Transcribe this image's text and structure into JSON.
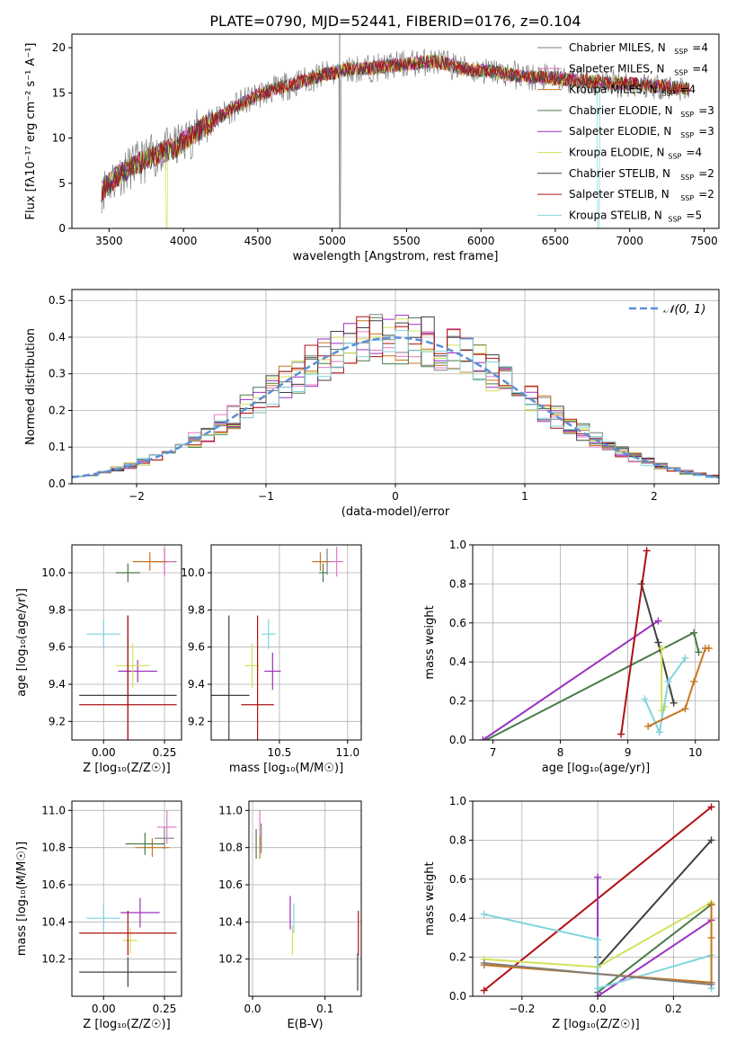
{
  "figure_title": "PLATE=0790, MJD=52441, FIBERID=0176, z=0.104",
  "series": [
    {
      "name": "Chabrier MILES",
      "nssp": "4",
      "color": "#7f7f7f"
    },
    {
      "name": "Salpeter MILES",
      "nssp": "4",
      "color": "#e377c2"
    },
    {
      "name": "Kroupa MILES",
      "nssp": "4",
      "color": "#c8761e"
    },
    {
      "name": "Chabrier ELODIE",
      "nssp": "3",
      "color": "#4a7a4a"
    },
    {
      "name": "Salpeter ELODIE",
      "nssp": "3",
      "color": "#9b30c0"
    },
    {
      "name": "Kroupa ELODIE",
      "nssp": "4",
      "color": "#d4e157"
    },
    {
      "name": "Chabrier STELIB",
      "nssp": "2",
      "color": "#404040"
    },
    {
      "name": "Salpeter STELIB",
      "nssp": "2",
      "color": "#b01010"
    },
    {
      "name": "Kroupa STELIB",
      "nssp": "5",
      "color": "#7fd4dc"
    }
  ],
  "chart_data": [
    {
      "id": "spectrum",
      "type": "line",
      "title": "PLATE=0790, MJD=52441, FIBERID=0176, z=0.104",
      "xlabel": "wavelength [Angstrom, rest frame]",
      "ylabel": "Flux [fλ10⁻¹⁷ erg cm⁻² s⁻¹ A⁻¹]",
      "xlim": [
        3250,
        7600
      ],
      "ylim": [
        0,
        21.5
      ],
      "xticks": [
        3500,
        4000,
        4500,
        5000,
        5500,
        6000,
        6500,
        7000,
        7500
      ],
      "yticks": [
        0,
        5,
        10,
        15,
        20
      ],
      "legend": "top-right",
      "continuum": {
        "x": [
          3450,
          3550,
          3650,
          3800,
          3950,
          4100,
          4300,
          4500,
          4700,
          4900,
          5100,
          5300,
          5500,
          5700,
          5900,
          6100,
          6300,
          6500,
          6700,
          6900,
          7100,
          7300,
          7400
        ],
        "y": [
          4.2,
          5.8,
          6.8,
          8.0,
          9.0,
          10.8,
          13.0,
          14.8,
          15.8,
          16.8,
          17.6,
          17.8,
          18.2,
          18.5,
          17.6,
          17.3,
          16.8,
          16.6,
          16.3,
          16.1,
          15.9,
          15.6,
          15.5
        ]
      }
    },
    {
      "id": "residuals",
      "type": "line",
      "xlabel": "(data-model)/error",
      "ylabel": "Normed distribution",
      "xlim": [
        -2.5,
        2.5
      ],
      "ylim": [
        0,
        0.53
      ],
      "xticks": [
        -2,
        -1,
        0,
        1,
        2
      ],
      "yticks": [
        0.0,
        0.1,
        0.2,
        0.3,
        0.4,
        0.5
      ],
      "grid": true,
      "legend": "top-right",
      "normal_label": "𝒩(0, 1)",
      "normal_color": "#5b8fd6"
    },
    {
      "id": "age_vs_Z",
      "type": "scatter",
      "xlabel": "Z [log₁₀(Z/Z☉)]",
      "ylabel": "age  [log₁₀(age/yr)]",
      "xlim": [
        -0.13,
        0.32
      ],
      "ylim": [
        9.1,
        10.15
      ],
      "xticks": [
        0.0,
        0.25
      ],
      "yticks": [
        9.2,
        9.4,
        9.6,
        9.8,
        10.0
      ],
      "grid": true,
      "points": [
        {
          "s": 0,
          "x": 0.25,
          "y": 10.06,
          "xerr": 0.05,
          "yerr": 0.07
        },
        {
          "s": 1,
          "x": 0.25,
          "y": 10.06,
          "xerr": 0.04,
          "yerr": 0.08
        },
        {
          "s": 2,
          "x": 0.19,
          "y": 10.06,
          "xerr": 0.07,
          "yerr": 0.05
        },
        {
          "s": 3,
          "x": 0.1,
          "y": 10.0,
          "xerr": 0.05,
          "yerr": 0.05
        },
        {
          "s": 4,
          "x": 0.14,
          "y": 9.47,
          "xerr": 0.08,
          "yerr": 0.06
        },
        {
          "s": 5,
          "x": 0.12,
          "y": 9.5,
          "xerr": 0.07,
          "yerr": 0.12
        },
        {
          "s": 6,
          "x": 0.1,
          "y": 9.34,
          "xerr": 0.2,
          "yerr": 0.43
        },
        {
          "s": 7,
          "x": 0.1,
          "y": 9.29,
          "xerr": 0.2,
          "yerr": 0.48
        },
        {
          "s": 8,
          "x": 0.0,
          "y": 9.67,
          "xerr": 0.07,
          "yerr": 0.08
        }
      ]
    },
    {
      "id": "age_vs_mass",
      "type": "scatter",
      "xlabel": "mass [log₁₀(M/M☉)]",
      "ylabel": "",
      "xlim": [
        10.0,
        11.1
      ],
      "ylim": [
        9.1,
        10.15
      ],
      "xticks": [
        10.5,
        11.0
      ],
      "yticks": [
        9.2,
        9.4,
        9.6,
        9.8,
        10.0
      ],
      "grid": true,
      "points": [
        {
          "s": 0,
          "x": 10.85,
          "y": 10.06,
          "xerr": 0.05,
          "yerr": 0.07
        },
        {
          "s": 1,
          "x": 10.92,
          "y": 10.06,
          "xerr": 0.05,
          "yerr": 0.08
        },
        {
          "s": 2,
          "x": 10.8,
          "y": 10.06,
          "xerr": 0.06,
          "yerr": 0.05
        },
        {
          "s": 3,
          "x": 10.82,
          "y": 10.0,
          "xerr": 0.03,
          "yerr": 0.05
        },
        {
          "s": 4,
          "x": 10.45,
          "y": 9.47,
          "xerr": 0.06,
          "yerr": 0.1
        },
        {
          "s": 5,
          "x": 10.3,
          "y": 9.5,
          "xerr": 0.05,
          "yerr": 0.12
        },
        {
          "s": 6,
          "x": 10.13,
          "y": 9.34,
          "xerr": 0.15,
          "yerr": 0.43
        },
        {
          "s": 7,
          "x": 10.34,
          "y": 9.29,
          "xerr": 0.12,
          "yerr": 0.48
        },
        {
          "s": 8,
          "x": 10.42,
          "y": 9.67,
          "xerr": 0.05,
          "yerr": 0.08
        }
      ]
    },
    {
      "id": "mass_weight_vs_age",
      "type": "line",
      "xlabel": "age  [log₁₀(age/yr)]",
      "ylabel": "mass weight",
      "xlim": [
        6.7,
        10.35
      ],
      "ylim": [
        0,
        1.0
      ],
      "xticks": [
        7,
        8,
        9,
        10
      ],
      "yticks": [
        0.0,
        0.2,
        0.4,
        0.6,
        0.8,
        1.0
      ],
      "grid": true,
      "lines": [
        {
          "s": 3,
          "x": [
            6.9,
            9.98,
            10.05
          ],
          "y": [
            0.0,
            0.55,
            0.45
          ]
        },
        {
          "s": 4,
          "x": 6.85,
          "y": 0.0,
          "x2": 9.45,
          "y2": 0.61
        },
        {
          "s": 6,
          "x": [
            9.2,
            9.45,
            9.68
          ],
          "y": [
            0.8,
            0.5,
            0.19
          ]
        },
        {
          "s": 7,
          "x": [
            8.9,
            9.28
          ],
          "y": [
            0.03,
            0.97
          ]
        },
        {
          "s": 5,
          "x": [
            9.5,
            9.5,
            9.55
          ],
          "y": [
            0.47,
            0.15,
            0.17
          ]
        },
        {
          "s": 8,
          "x": [
            9.25,
            9.47,
            9.6,
            9.85
          ],
          "y": [
            0.21,
            0.04,
            0.3,
            0.42
          ]
        },
        {
          "s": 2,
          "x": [
            9.3,
            9.85,
            9.98,
            10.15,
            10.2
          ],
          "y": [
            0.07,
            0.16,
            0.3,
            0.47,
            0.47
          ]
        }
      ]
    },
    {
      "id": "mass_vs_Z",
      "type": "scatter",
      "xlabel": "Z [log₁₀(Z/Z☉)]",
      "ylabel": "mass [log₁₀(M/M☉)]",
      "xlim": [
        -0.13,
        0.32
      ],
      "ylim": [
        10.0,
        11.05
      ],
      "xticks": [
        0.0,
        0.25
      ],
      "yticks": [
        10.2,
        10.4,
        10.6,
        10.8,
        11.0
      ],
      "grid": true,
      "points": [
        {
          "s": 0,
          "x": 0.25,
          "y": 10.85,
          "xerr": 0.04,
          "yerr": 0.06
        },
        {
          "s": 1,
          "x": 0.26,
          "y": 10.91,
          "xerr": 0.04,
          "yerr": 0.09
        },
        {
          "s": 2,
          "x": 0.2,
          "y": 10.8,
          "xerr": 0.07,
          "yerr": 0.05
        },
        {
          "s": 3,
          "x": 0.17,
          "y": 10.82,
          "xerr": 0.08,
          "yerr": 0.06
        },
        {
          "s": 4,
          "x": 0.15,
          "y": 10.45,
          "xerr": 0.08,
          "yerr": 0.08
        },
        {
          "s": 5,
          "x": 0.11,
          "y": 10.3,
          "xerr": 0.03,
          "yerr": 0.07
        },
        {
          "s": 6,
          "x": 0.1,
          "y": 10.13,
          "xerr": 0.2,
          "yerr": 0.08
        },
        {
          "s": 7,
          "x": 0.1,
          "y": 10.34,
          "xerr": 0.2,
          "yerr": 0.12
        },
        {
          "s": 8,
          "x": 0.0,
          "y": 10.42,
          "xerr": 0.07,
          "yerr": 0.07
        }
      ]
    },
    {
      "id": "mass_vs_ebv",
      "type": "scatter",
      "xlabel": "E(B-V)",
      "ylabel": "",
      "xlim": [
        -0.005,
        0.15
      ],
      "ylim": [
        10.0,
        11.05
      ],
      "xticks": [
        0.0,
        0.1
      ],
      "yticks": [
        10.2,
        10.4,
        10.6,
        10.8,
        11.0
      ],
      "grid": true,
      "points": [
        {
          "s": 0,
          "x": 0.012,
          "y": 10.85,
          "xerr": 0.0,
          "yerr": 0.08
        },
        {
          "s": 1,
          "x": 0.01,
          "y": 10.91,
          "xerr": 0.0,
          "yerr": 0.09
        },
        {
          "s": 2,
          "x": 0.01,
          "y": 10.8,
          "xerr": 0.0,
          "yerr": 0.06
        },
        {
          "s": 3,
          "x": 0.005,
          "y": 10.82,
          "xerr": 0.0,
          "yerr": 0.08
        },
        {
          "s": 4,
          "x": 0.052,
          "y": 10.45,
          "xerr": 0.0,
          "yerr": 0.09
        },
        {
          "s": 5,
          "x": 0.055,
          "y": 10.3,
          "xerr": 0.0,
          "yerr": 0.08
        },
        {
          "s": 6,
          "x": 0.145,
          "y": 10.13,
          "xerr": 0.0,
          "yerr": 0.1
        },
        {
          "s": 7,
          "x": 0.146,
          "y": 10.34,
          "xerr": 0.0,
          "yerr": 0.12
        },
        {
          "s": 8,
          "x": 0.057,
          "y": 10.42,
          "xerr": 0.0,
          "yerr": 0.08
        }
      ]
    },
    {
      "id": "mass_weight_vs_Z",
      "type": "line",
      "xlabel": "Z [log₁₀(Z/Z☉)]",
      "ylabel": "mass weight",
      "xlim": [
        -0.33,
        0.32
      ],
      "ylim": [
        0,
        1.0
      ],
      "xticks": [
        -0.2,
        0.0,
        0.2
      ],
      "yticks": [
        0.0,
        0.2,
        0.4,
        0.6,
        0.8,
        1.0
      ],
      "grid": true,
      "lines": [
        {
          "s": 7,
          "x": [
            -0.3,
            0.3
          ],
          "y": [
            0.03,
            0.97
          ]
        },
        {
          "s": 6,
          "x": [
            0.0,
            0.0,
            0.3
          ],
          "y": [
            0.2,
            0.15,
            0.8
          ]
        },
        {
          "s": 5,
          "x": [
            -0.3,
            0.0,
            0.3
          ],
          "y": [
            0.19,
            0.15,
            0.48
          ]
        },
        {
          "s": 3,
          "x": [
            0.0,
            0.3
          ],
          "y": [
            0.02,
            0.47
          ]
        },
        {
          "s": 4,
          "x": [
            0.0,
            0.0,
            0.3
          ],
          "y": [
            0.61,
            0.0,
            0.39
          ]
        },
        {
          "s": 8,
          "x": [
            -0.3,
            0.0,
            0.0,
            0.3,
            0.3
          ],
          "y": [
            0.42,
            0.29,
            0.04,
            0.21,
            0.04
          ]
        },
        {
          "s": 2,
          "x": [
            -0.3,
            0.3,
            0.3,
            0.3
          ],
          "y": [
            0.16,
            0.07,
            0.3,
            0.47
          ]
        },
        {
          "s": 0,
          "x": [
            -0.3,
            0.3
          ],
          "y": [
            0.17,
            0.06
          ]
        }
      ]
    }
  ]
}
